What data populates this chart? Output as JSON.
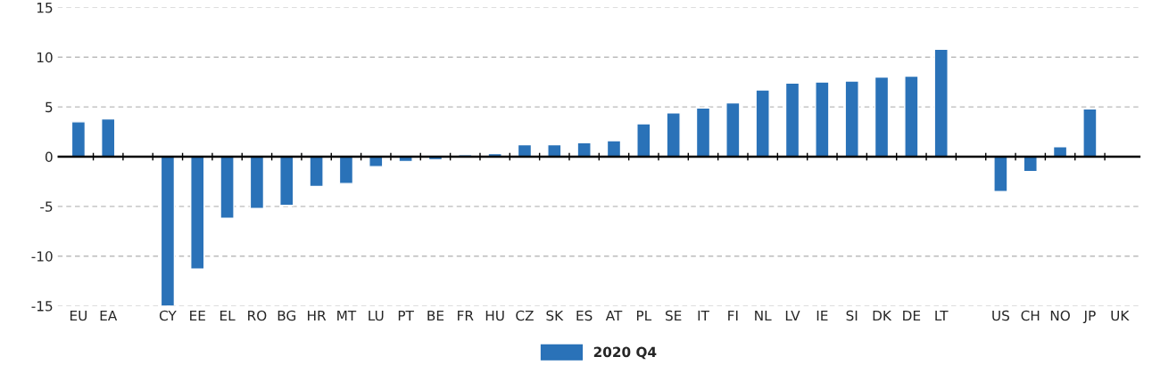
{
  "chart_data": {
    "type": "bar",
    "categories": [
      "EU",
      "EA",
      null,
      "CY",
      "EE",
      "EL",
      "RO",
      "BG",
      "HR",
      "MT",
      "LU",
      "PT",
      "BE",
      "FR",
      "HU",
      "CZ",
      "SK",
      "ES",
      "AT",
      "PL",
      "SE",
      "IT",
      "FI",
      "NL",
      "LV",
      "IE",
      "SI",
      "DK",
      "DE",
      "LT",
      null,
      "US",
      "CH",
      "NO",
      "JP",
      "UK"
    ],
    "series": [
      {
        "name": "2020 Q4",
        "color": "#2a72b8",
        "values": [
          3.5,
          3.8,
          null,
          -15.0,
          -11.3,
          -6.2,
          -5.2,
          -4.9,
          -3.0,
          -2.7,
          -1.0,
          -0.5,
          -0.3,
          0.2,
          0.3,
          1.2,
          1.2,
          1.4,
          1.6,
          3.3,
          4.4,
          4.9,
          5.4,
          6.7,
          7.4,
          7.5,
          7.6,
          8.0,
          8.1,
          10.8,
          null,
          -3.5,
          -1.5,
          1.0,
          4.8,
          null
        ]
      }
    ],
    "ylim": [
      -15,
      15
    ],
    "yticks": [
      -15,
      -10,
      -5,
      0,
      5,
      10,
      15
    ],
    "grid": "y",
    "legend": "bottom",
    "ref_lines": [
      {
        "axis": "y",
        "value": 0,
        "color": "#000000",
        "line_style": "solid"
      }
    ]
  }
}
